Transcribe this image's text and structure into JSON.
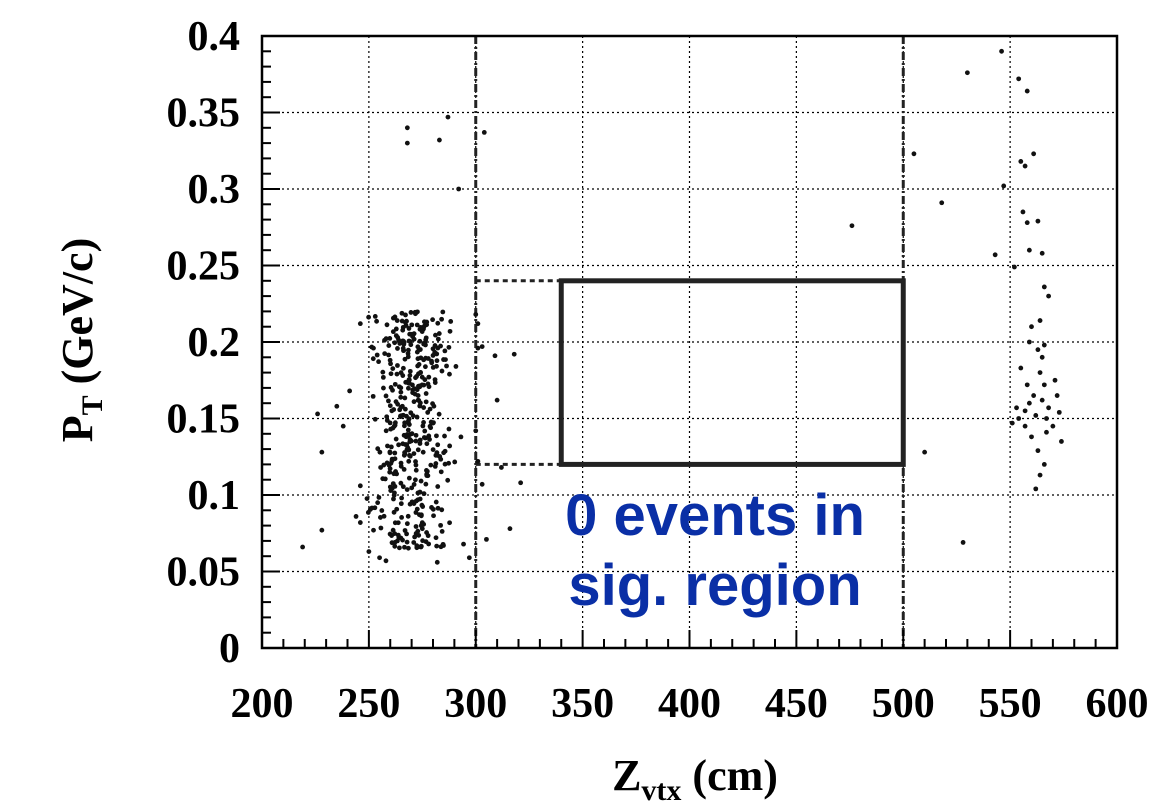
{
  "chart_data": {
    "type": "scatter",
    "title": "",
    "xlabel": {
      "main": "Z",
      "sub": "vtx",
      "unit": " (cm)"
    },
    "ylabel": {
      "main": "P",
      "sub": "T",
      "unit": " (GeV/c)"
    },
    "xlim": [
      200,
      600
    ],
    "ylim": [
      0,
      0.4
    ],
    "xticks": [
      "200",
      "250",
      "300",
      "350",
      "400",
      "450",
      "500",
      "550",
      "600"
    ],
    "yticks": [
      "0",
      "0.05",
      "0.1",
      "0.15",
      "0.2",
      "0.25",
      "0.3",
      "0.35",
      "0.4"
    ],
    "grid": true,
    "signal_region": {
      "x": [
        340,
        500
      ],
      "y": [
        0.12,
        0.24
      ]
    },
    "dashed_boundaries_x": [
      300,
      500
    ],
    "dotted_region": {
      "x": [
        300,
        340
      ],
      "y": [
        0.12,
        0.24
      ]
    },
    "annotation": {
      "lines": [
        "0 events in",
        "sig. region"
      ],
      "color": "#0a2fa6"
    },
    "series": [
      {
        "points": [
          [
            268,
            0.34
          ],
          [
            268,
            0.33
          ],
          [
            283,
            0.332
          ],
          [
            287,
            0.347
          ],
          [
            292,
            0.3
          ],
          [
            304,
            0.337
          ],
          [
            226,
            0.153
          ],
          [
            228,
            0.128
          ],
          [
            219,
            0.066
          ],
          [
            228,
            0.077
          ],
          [
            235,
            0.158
          ],
          [
            238,
            0.145
          ],
          [
            241,
            0.168
          ],
          [
            244,
            0.086
          ],
          [
            246,
            0.212
          ],
          [
            246,
            0.082
          ],
          [
            246,
            0.106
          ],
          [
            250,
            0.063
          ],
          [
            255,
            0.059
          ],
          [
            258,
            0.057
          ],
          [
            297,
            0.059
          ],
          [
            282,
            0.056
          ],
          [
            300,
            0.218
          ],
          [
            301,
            0.212
          ],
          [
            301,
            0.196
          ],
          [
            303,
            0.197
          ],
          [
            300,
            0.142
          ],
          [
            301,
            0.122
          ],
          [
            303,
            0.107
          ],
          [
            305,
            0.071
          ],
          [
            309,
            0.191
          ],
          [
            310,
            0.162
          ],
          [
            312,
            0.118
          ],
          [
            318,
            0.192
          ],
          [
            316,
            0.078
          ],
          [
            321,
            0.108
          ],
          [
            476,
            0.276
          ],
          [
            505,
            0.323
          ],
          [
            510,
            0.128
          ],
          [
            518,
            0.291
          ],
          [
            528,
            0.069
          ],
          [
            530,
            0.376
          ],
          [
            543,
            0.257
          ],
          [
            546,
            0.39
          ],
          [
            547,
            0.302
          ],
          [
            551,
            0.147
          ],
          [
            552,
            0.249
          ],
          [
            554,
            0.372
          ],
          [
            558,
            0.364
          ],
          [
            555,
            0.318
          ],
          [
            557,
            0.315
          ],
          [
            556,
            0.285
          ],
          [
            558,
            0.278
          ],
          [
            559,
            0.26
          ],
          [
            561,
            0.323
          ],
          [
            563,
            0.279
          ],
          [
            565,
            0.258
          ],
          [
            566,
            0.236
          ],
          [
            568,
            0.23
          ],
          [
            564,
            0.214
          ],
          [
            566,
            0.198
          ],
          [
            560,
            0.21
          ],
          [
            559,
            0.2
          ],
          [
            563,
            0.195
          ],
          [
            565,
            0.19
          ],
          [
            562,
            0.104
          ],
          [
            564,
            0.113
          ],
          [
            566,
            0.12
          ],
          [
            571,
            0.175
          ],
          [
            572,
            0.165
          ],
          [
            573,
            0.154
          ],
          [
            574,
            0.135
          ],
          [
            570,
            0.145
          ],
          [
            568,
            0.157
          ],
          [
            567,
            0.141
          ],
          [
            563,
            0.129
          ],
          [
            557,
            0.145
          ],
          [
            560,
            0.138
          ],
          [
            555,
            0.183
          ],
          [
            558,
            0.172
          ],
          [
            561,
            0.165
          ],
          [
            564,
            0.18
          ],
          [
            566,
            0.172
          ],
          [
            557,
            0.155
          ],
          [
            559,
            0.16
          ],
          [
            562,
            0.152
          ],
          [
            565,
            0.162
          ],
          [
            567,
            0.15
          ],
          [
            554,
            0.15
          ],
          [
            553,
            0.157
          ]
        ]
      }
    ],
    "cluster": {
      "x_center": 270,
      "x_spread": 12,
      "y_min": 0.065,
      "y_max": 0.22,
      "n": 430
    }
  }
}
